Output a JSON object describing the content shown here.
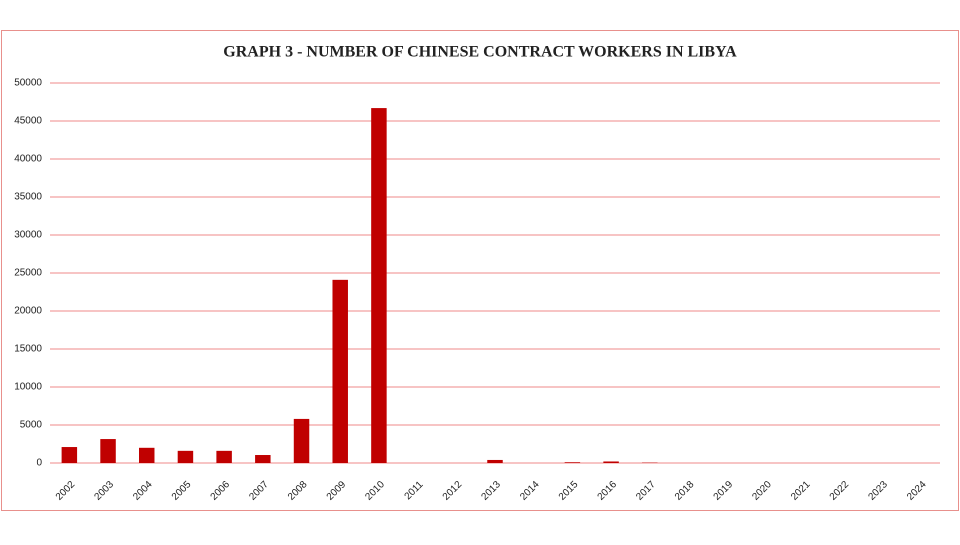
{
  "chart_data": {
    "type": "bar",
    "title": "GRAPH 3 - NUMBER OF CHINESE CONTRACT WORKERS IN LIBYA",
    "categories": [
      "2002",
      "2003",
      "2004",
      "2005",
      "2006",
      "2007",
      "2008",
      "2009",
      "2010",
      "2011",
      "2012",
      "2013",
      "2014",
      "2015",
      "2016",
      "2017",
      "2018",
      "2019",
      "2020",
      "2021",
      "2022",
      "2023",
      "2024"
    ],
    "values": [
      2100,
      3150,
      2000,
      1600,
      1600,
      1050,
      5800,
      24100,
      46700,
      0,
      0,
      400,
      0,
      100,
      200,
      50,
      0,
      0,
      0,
      0,
      0,
      0,
      0
    ],
    "color": "#c00000",
    "ylim": [
      0,
      50000
    ],
    "yticks": [
      0,
      5000,
      10000,
      15000,
      20000,
      25000,
      30000,
      35000,
      40000,
      45000,
      50000
    ],
    "grid": true
  }
}
